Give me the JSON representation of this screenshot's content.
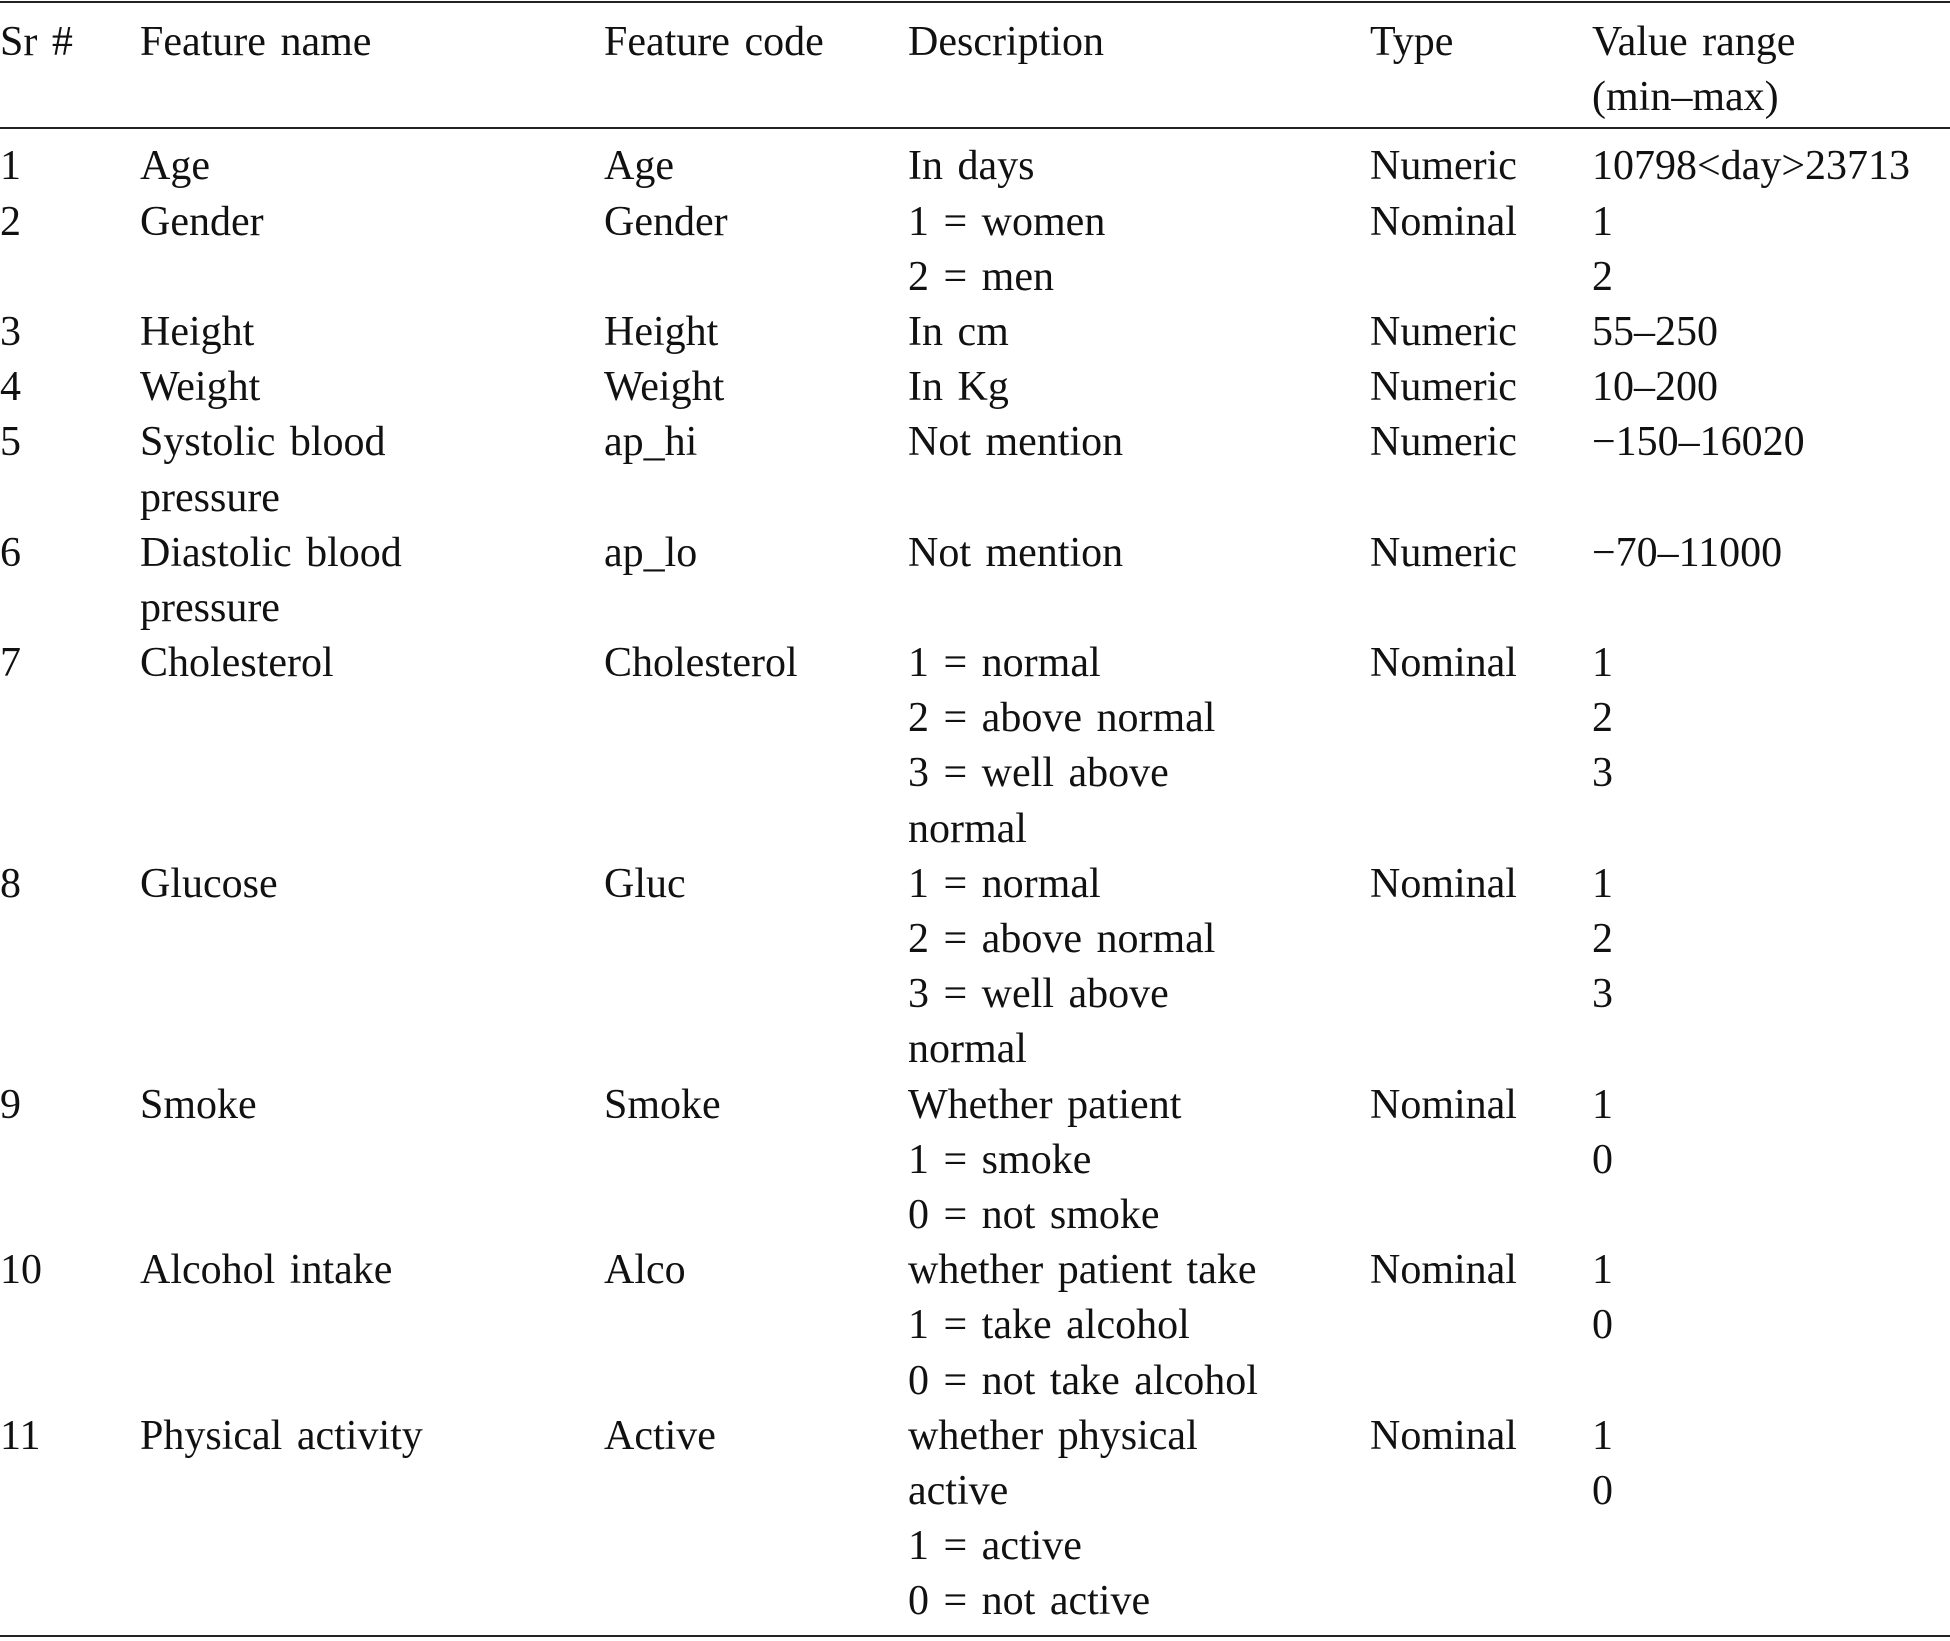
{
  "table": {
    "header": [
      [
        "Sr #"
      ],
      [
        "Feature name"
      ],
      [
        "Feature code"
      ],
      [
        "Description"
      ],
      [
        "Type"
      ],
      [
        "Value range",
        "(min–max)"
      ]
    ],
    "rows": [
      [
        [
          "1"
        ],
        [
          "Age"
        ],
        [
          "Age"
        ],
        [
          "In days"
        ],
        [
          "Numeric"
        ],
        [
          "10798<day>23713"
        ]
      ],
      [
        [
          "2"
        ],
        [
          "Gender"
        ],
        [
          "Gender"
        ],
        [
          "1 = women",
          "2 = men"
        ],
        [
          "Nominal"
        ],
        [
          "1",
          "2"
        ]
      ],
      [
        [
          "3"
        ],
        [
          "Height"
        ],
        [
          "Height"
        ],
        [
          "In cm"
        ],
        [
          "Numeric"
        ],
        [
          "55–250"
        ]
      ],
      [
        [
          "4"
        ],
        [
          "Weight"
        ],
        [
          "Weight"
        ],
        [
          "In Kg"
        ],
        [
          "Numeric"
        ],
        [
          "10–200"
        ]
      ],
      [
        [
          "5"
        ],
        [
          "Systolic blood",
          "pressure"
        ],
        [
          "ap_hi"
        ],
        [
          "Not mention"
        ],
        [
          "Numeric"
        ],
        [
          "−150–16020"
        ]
      ],
      [
        [
          "6"
        ],
        [
          "Diastolic blood",
          "pressure"
        ],
        [
          "ap_lo"
        ],
        [
          "Not mention"
        ],
        [
          "Numeric"
        ],
        [
          "−70–11000"
        ]
      ],
      [
        [
          "7"
        ],
        [
          "Cholesterol"
        ],
        [
          "Cholesterol"
        ],
        [
          "1 = normal",
          "2 = above normal",
          "3 = well above",
          "normal"
        ],
        [
          "Nominal"
        ],
        [
          "1",
          "2",
          "3"
        ]
      ],
      [
        [
          "8"
        ],
        [
          "Glucose"
        ],
        [
          "Gluc"
        ],
        [
          "1 = normal",
          "2 = above normal",
          "3 = well above",
          "normal"
        ],
        [
          "Nominal"
        ],
        [
          "1",
          "2",
          "3"
        ]
      ],
      [
        [
          "9"
        ],
        [
          "Smoke"
        ],
        [
          "Smoke"
        ],
        [
          "Whether patient",
          "1 = smoke",
          "0 = not smoke"
        ],
        [
          "Nominal"
        ],
        [
          "1",
          "0"
        ]
      ],
      [
        [
          "10"
        ],
        [
          "Alcohol intake"
        ],
        [
          "Alco"
        ],
        [
          "whether patient take",
          "1 = take alcohol",
          "0 = not take alcohol"
        ],
        [
          "Nominal"
        ],
        [
          "1",
          "0"
        ]
      ],
      [
        [
          "11"
        ],
        [
          "Physical activity"
        ],
        [
          "Active"
        ],
        [
          "whether physical",
          "active",
          "1 = active",
          "0 = not active"
        ],
        [
          "Nominal"
        ],
        [
          "1",
          "0"
        ]
      ]
    ]
  }
}
